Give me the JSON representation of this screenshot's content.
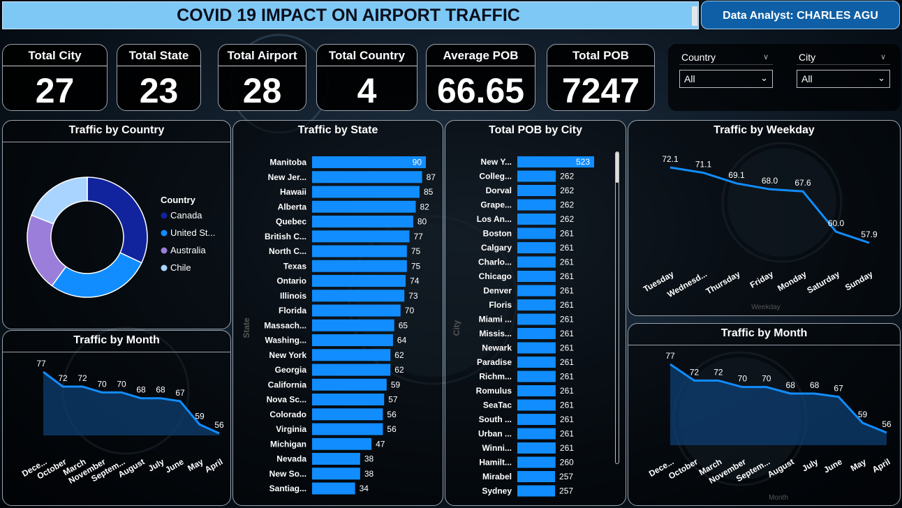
{
  "header": {
    "title": "COVID 19 IMPACT ON AIRPORT TRAFFIC",
    "analyst": "Data Analyst: CHARLES AGU"
  },
  "kpis": [
    {
      "label": "Total City",
      "value": "27"
    },
    {
      "label": "Total State",
      "value": "23"
    },
    {
      "label": "Total Airport",
      "value": "28"
    },
    {
      "label": "Total Country",
      "value": "4"
    },
    {
      "label": "Average POB",
      "value": "66.65"
    },
    {
      "label": "Total POB",
      "value": "7247"
    }
  ],
  "filters": {
    "country": {
      "label": "Country",
      "value": "All"
    },
    "city": {
      "label": "City",
      "value": "All"
    }
  },
  "colors": {
    "bar": "#118dff",
    "line": "#118dff",
    "canada": "#12239e",
    "united_states": "#118dff",
    "australia": "#9b7ed9",
    "chile": "#a8d4ff"
  },
  "chart_data": [
    {
      "type": "pie",
      "title": "Traffic by Country",
      "legend_title": "Country",
      "legend_position": "right",
      "categories": [
        "Canada",
        "United St...",
        "Australia",
        "Chile"
      ],
      "values": [
        32,
        28,
        21,
        19
      ]
    },
    {
      "type": "bar",
      "orientation": "horizontal",
      "title": "Traffic  by State",
      "ylabel": "State",
      "categories": [
        "Manitoba",
        "New Jer...",
        "Hawaii",
        "Alberta",
        "Quebec",
        "British C...",
        "North C...",
        "Texas",
        "Ontario",
        "Illinois",
        "Florida",
        "Massach...",
        "Washing...",
        "New York",
        "Georgia",
        "California",
        "Nova Sc...",
        "Colorado",
        "Virginia",
        "Michigan",
        "Nevada",
        "New So...",
        "Santiag..."
      ],
      "values": [
        90,
        87,
        85,
        82,
        80,
        77,
        75,
        75,
        74,
        73,
        70,
        65,
        64,
        62,
        62,
        59,
        57,
        56,
        56,
        47,
        38,
        38,
        34
      ]
    },
    {
      "type": "bar",
      "orientation": "horizontal",
      "title": "Total POB by City",
      "ylabel": "City",
      "categories": [
        "New Y...",
        "Colleg...",
        "Dorval",
        "Grape...",
        "Los An...",
        "Boston",
        "Calgary",
        "Charlo...",
        "Chicago",
        "Denver",
        "Floris",
        "Miami ...",
        "Missis...",
        "Newark",
        "Paradise",
        "Richm...",
        "Romulus",
        "SeaTac",
        "South ...",
        "Urban ...",
        "Winni...",
        "Hamilt...",
        "Mirabel",
        "Sydney"
      ],
      "values": [
        523,
        262,
        262,
        262,
        262,
        261,
        261,
        261,
        261,
        261,
        261,
        261,
        261,
        261,
        261,
        261,
        261,
        261,
        261,
        261,
        261,
        260,
        257,
        257
      ]
    },
    {
      "type": "line",
      "title": "Traffic by Weekday",
      "xlabel": "Weekday",
      "x": [
        "Tuesday",
        "Wednesd...",
        "Thursday",
        "Friday",
        "Monday",
        "Saturday",
        "Sunday"
      ],
      "values": [
        72.1,
        71.1,
        69.1,
        68.0,
        67.6,
        60.0,
        57.9
      ],
      "labels": [
        "72.1",
        "71.1",
        "69.1",
        "68.0",
        "67.6",
        "60.0",
        "57.9"
      ]
    },
    {
      "type": "area",
      "title": "Traffic by Month",
      "xlabel": "Month",
      "x": [
        "Dece...",
        "October",
        "March",
        "November",
        "Septem...",
        "August",
        "July",
        "June",
        "May",
        "April"
      ],
      "values": [
        77,
        72,
        72,
        70,
        70,
        68,
        68,
        67,
        59,
        56
      ]
    },
    {
      "type": "area",
      "title": "Traffic by Month",
      "xlabel": "Month",
      "x": [
        "Dece...",
        "October",
        "March",
        "November",
        "Septem...",
        "August",
        "July",
        "June",
        "May",
        "April"
      ],
      "values": [
        77,
        72,
        72,
        70,
        70,
        68,
        68,
        67,
        59,
        56
      ]
    }
  ]
}
